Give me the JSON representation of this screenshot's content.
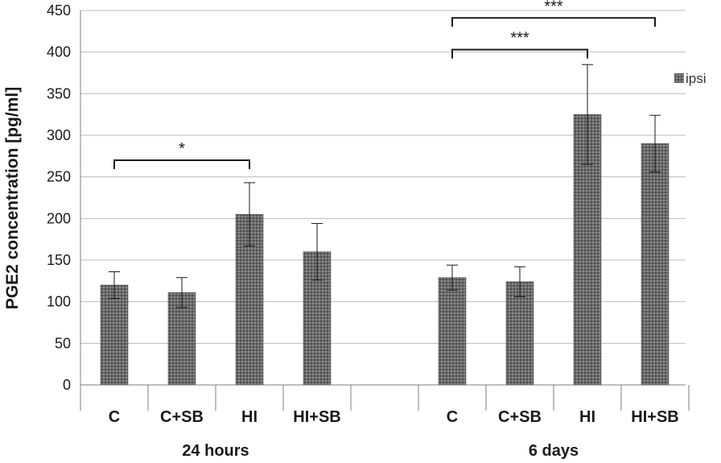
{
  "chart_data": {
    "type": "bar",
    "title": "",
    "ylabel": "PGE2 concentration [pg/ml]",
    "xlabel": "",
    "ylim": [
      0,
      450
    ],
    "yticks": [
      0,
      50,
      100,
      150,
      200,
      250,
      300,
      350,
      400,
      450
    ],
    "grid": true,
    "legend_position": "right",
    "groups": [
      {
        "label": "24 hours",
        "categories": [
          "C",
          "C+SB",
          "HI",
          "HI+SB"
        ]
      },
      {
        "label": "6 days",
        "categories": [
          "C",
          "C+SB",
          "HI",
          "HI+SB"
        ]
      }
    ],
    "series": [
      {
        "name": "ipsi",
        "values": [
          120,
          111,
          205,
          160,
          129,
          124,
          325,
          290
        ],
        "error": [
          16,
          18,
          38,
          34,
          15,
          18,
          60,
          34
        ]
      }
    ],
    "significance": [
      {
        "from": 0,
        "to": 2,
        "label": "*",
        "y": 270
      },
      {
        "from": 4,
        "to": 6,
        "label": "***",
        "y": 403
      },
      {
        "from": 4,
        "to": 7,
        "label": "***",
        "y": 441
      }
    ]
  }
}
